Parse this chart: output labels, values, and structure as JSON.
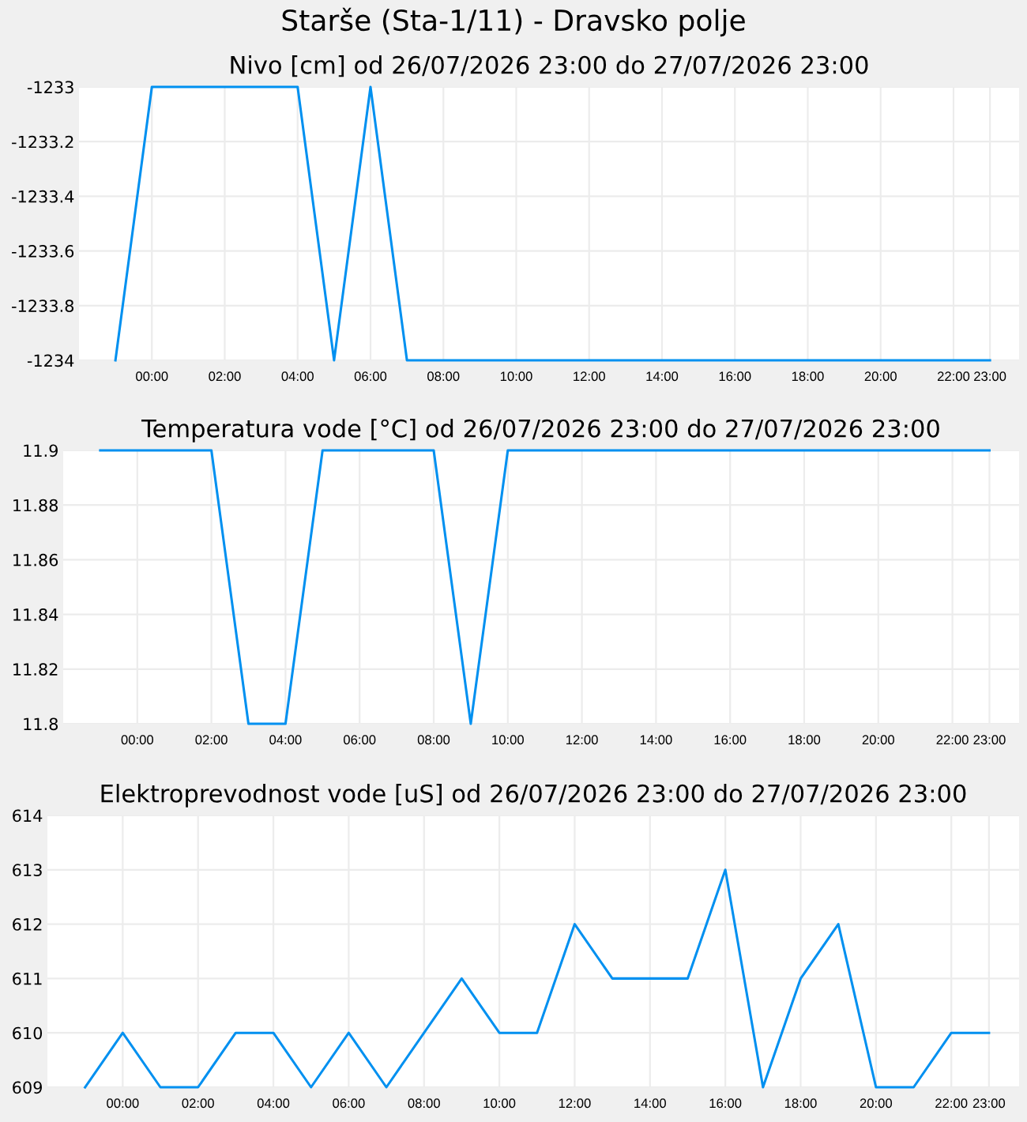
{
  "chart_data": [
    {
      "type": "line",
      "title": "Nivo [cm] od 26/07/2026 23:00 do 27/07/2026 23:00",
      "x": [
        -1,
        0,
        1,
        2,
        3,
        4,
        5,
        6,
        7,
        8,
        9,
        10,
        11,
        12,
        13,
        14,
        15,
        16,
        17,
        18,
        19,
        20,
        21,
        22,
        23
      ],
      "series": [
        {
          "color": "#0090f0",
          "values": [
            -1234,
            -1233,
            -1233,
            -1233,
            -1233,
            -1233,
            -1234,
            -1233,
            -1234,
            -1234,
            -1234,
            -1234,
            -1234,
            -1234,
            -1234,
            -1234,
            -1234,
            -1234,
            -1234,
            -1234,
            -1234,
            -1234,
            -1234,
            -1234,
            -1234
          ]
        }
      ],
      "xlim": [
        -2,
        23.8
      ],
      "ylim": [
        -1234,
        -1233
      ],
      "xticks": [
        {
          "value": 0,
          "label": "00:00"
        },
        {
          "value": 2,
          "label": "02:00"
        },
        {
          "value": 4,
          "label": "04:00"
        },
        {
          "value": 6,
          "label": "06:00"
        },
        {
          "value": 8,
          "label": "08:00"
        },
        {
          "value": 10,
          "label": "10:00"
        },
        {
          "value": 12,
          "label": "12:00"
        },
        {
          "value": 14,
          "label": "14:00"
        },
        {
          "value": 16,
          "label": "16:00"
        },
        {
          "value": 18,
          "label": "18:00"
        },
        {
          "value": 20,
          "label": "20:00"
        },
        {
          "value": 22,
          "label": "22:00"
        },
        {
          "value": 23,
          "label": "23:00"
        }
      ],
      "yticks": [
        -1234,
        -1233.8,
        -1233.6,
        -1233.4,
        -1233.2,
        -1233
      ],
      "grid": true,
      "marker": "none",
      "line_style": "solid"
    },
    {
      "type": "line",
      "title": "Temperatura vode [°C] od 26/07/2026 23:00 do 27/07/2026 23:00",
      "x": [
        -1,
        0,
        1,
        2,
        3,
        4,
        5,
        6,
        7,
        8,
        9,
        10,
        11,
        12,
        13,
        14,
        15,
        16,
        17,
        18,
        19,
        20,
        21,
        22,
        23
      ],
      "series": [
        {
          "color": "#0090f0",
          "values": [
            11.9,
            11.9,
            11.9,
            11.9,
            11.8,
            11.8,
            11.9,
            11.9,
            11.9,
            11.9,
            11.8,
            11.9,
            11.9,
            11.9,
            11.9,
            11.9,
            11.9,
            11.9,
            11.9,
            11.9,
            11.9,
            11.9,
            11.9,
            11.9,
            11.9
          ]
        }
      ],
      "xlim": [
        -2,
        23.8
      ],
      "ylim": [
        11.8,
        11.9
      ],
      "xticks": [
        {
          "value": 0,
          "label": "00:00"
        },
        {
          "value": 2,
          "label": "02:00"
        },
        {
          "value": 4,
          "label": "04:00"
        },
        {
          "value": 6,
          "label": "06:00"
        },
        {
          "value": 8,
          "label": "08:00"
        },
        {
          "value": 10,
          "label": "10:00"
        },
        {
          "value": 12,
          "label": "12:00"
        },
        {
          "value": 14,
          "label": "14:00"
        },
        {
          "value": 16,
          "label": "16:00"
        },
        {
          "value": 18,
          "label": "18:00"
        },
        {
          "value": 20,
          "label": "20:00"
        },
        {
          "value": 22,
          "label": "22:00"
        },
        {
          "value": 23,
          "label": "23:00"
        }
      ],
      "yticks": [
        11.8,
        11.82,
        11.84,
        11.86,
        11.88,
        11.9
      ],
      "grid": true,
      "marker": "none",
      "line_style": "solid"
    },
    {
      "type": "line",
      "title": "Elektroprevodnost vode [uS] od 26/07/2026 23:00 do 27/07/2026 23:00",
      "x": [
        -1,
        0,
        1,
        2,
        3,
        4,
        5,
        6,
        7,
        8,
        9,
        10,
        11,
        12,
        13,
        14,
        15,
        16,
        17,
        18,
        19,
        20,
        21,
        22,
        23
      ],
      "series": [
        {
          "color": "#0090f0",
          "values": [
            609,
            610,
            609,
            609,
            610,
            610,
            609,
            610,
            609,
            610,
            611,
            610,
            610,
            612,
            611,
            611,
            611,
            613,
            609,
            611,
            612,
            609,
            609,
            610,
            610
          ]
        }
      ],
      "xlim": [
        -2,
        23.8
      ],
      "ylim": [
        609,
        614
      ],
      "xticks": [
        {
          "value": 0,
          "label": "00:00"
        },
        {
          "value": 2,
          "label": "02:00"
        },
        {
          "value": 4,
          "label": "04:00"
        },
        {
          "value": 6,
          "label": "06:00"
        },
        {
          "value": 8,
          "label": "08:00"
        },
        {
          "value": 10,
          "label": "10:00"
        },
        {
          "value": 12,
          "label": "12:00"
        },
        {
          "value": 14,
          "label": "14:00"
        },
        {
          "value": 16,
          "label": "16:00"
        },
        {
          "value": 18,
          "label": "18:00"
        },
        {
          "value": 20,
          "label": "20:00"
        },
        {
          "value": 22,
          "label": "22:00"
        },
        {
          "value": 23,
          "label": "23:00"
        }
      ],
      "yticks": [
        609,
        610,
        611,
        612,
        613,
        614
      ],
      "grid": true,
      "marker": "none",
      "line_style": "solid"
    },
    {
      "type": "other",
      "title": "Starše (Sta-1/11) - Dravsko polje"
    }
  ]
}
